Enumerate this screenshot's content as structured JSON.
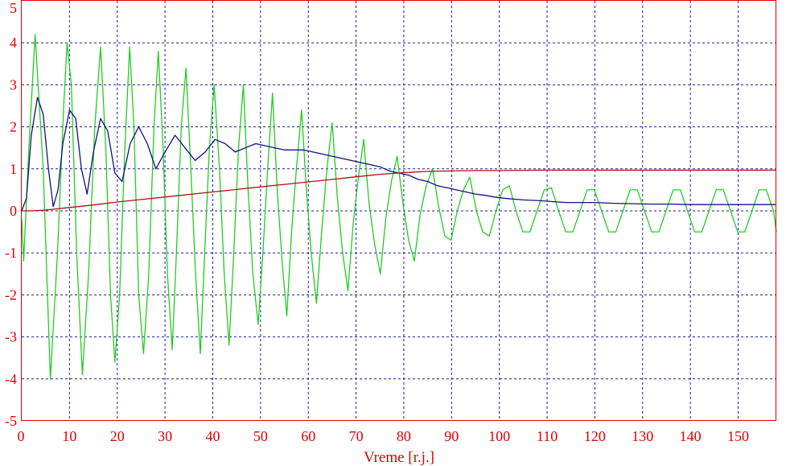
{
  "chart_data": {
    "type": "line",
    "title": "",
    "xlabel": "Vreme [r.j.]",
    "ylabel": "",
    "xlim": [
      0,
      158
    ],
    "ylim": [
      -5,
      5
    ],
    "grid": true,
    "legend": "none",
    "x_ticks": [
      0,
      10,
      20,
      30,
      40,
      50,
      60,
      70,
      80,
      90,
      100,
      110,
      120,
      130,
      140,
      150
    ],
    "x_tick_labels": [
      "0",
      "10",
      "20",
      "30",
      "40",
      "50",
      "60",
      "70",
      "80",
      "90",
      "100",
      "110",
      "120",
      "130",
      "140",
      "150"
    ],
    "y_ticks": [
      -5,
      -4,
      -3,
      -2,
      -1,
      0,
      1,
      2,
      3,
      4,
      5
    ],
    "y_tick_labels": [
      "-5",
      "-4",
      "-3",
      "-2",
      "-1",
      "0",
      "1",
      "2",
      "3",
      "4",
      "5"
    ],
    "colors": {
      "axis_text": "#e00000",
      "frame": "#e00000",
      "grid": "#1a1aa8",
      "background": "#ffffff"
    },
    "series": [
      {
        "color": "#22cc22",
        "x": [
          0,
          0.4,
          1.5,
          2.8,
          4.5,
          6.0,
          7.5,
          8.8,
          9.5,
          10.4,
          11.5,
          12.7,
          14.0,
          15.3,
          16.5,
          17.6,
          18.6,
          19.5,
          20.5,
          21.6,
          22.6,
          23.5,
          24.5,
          25.5,
          26.6,
          27.7,
          28.6,
          29.6,
          30.5,
          31.5,
          32.4,
          33.4,
          34.4,
          35.4,
          36.4,
          37.4,
          38.3,
          39.3,
          40.3,
          41.4,
          42.4,
          43.4,
          44.4,
          45.4,
          46.4,
          47.4,
          48.4,
          49.5,
          50.5,
          51.5,
          52.5,
          53.5,
          54.5,
          55.5,
          56.5,
          57.5,
          58.6,
          59.6,
          60.6,
          61.7,
          62.8,
          63.9,
          65.0,
          66.1,
          67.2,
          68.3,
          69.4,
          70.5,
          71.6,
          72.7,
          73.9,
          75.1,
          76.2,
          77.4,
          78.6,
          79.8,
          81.0,
          82.2,
          83.4,
          84.7,
          86.0,
          87.3,
          88.6,
          89.9,
          91.2,
          92.5,
          93.8,
          95.2,
          96.5,
          97.9,
          99.3,
          100.7,
          102.1,
          103.5,
          104.9,
          106.4,
          107.9,
          109.4,
          110.9,
          112.4,
          113.9,
          115.4,
          116.9,
          118.4,
          119.9,
          121.4,
          122.9,
          124.4,
          125.9,
          127.4,
          128.9,
          130.4,
          131.9,
          133.4,
          134.9,
          136.4,
          137.9,
          139.4,
          140.9,
          142.4,
          143.9,
          145.4,
          146.9,
          148.4,
          149.9,
          151.4,
          152.9,
          154.4,
          155.9,
          157.4,
          158
        ],
        "y": [
          -0.2,
          -1.2,
          1.5,
          4.2,
          1.0,
          -4.0,
          -1.0,
          2.5,
          4.0,
          3.0,
          -1.0,
          -3.9,
          -1.5,
          2.0,
          3.9,
          1.5,
          -2.0,
          -3.6,
          -2.0,
          1.5,
          3.9,
          2.0,
          -2.0,
          -3.4,
          -1.5,
          2.0,
          3.8,
          1.5,
          -1.5,
          -3.3,
          -1.0,
          2.0,
          3.4,
          1.0,
          -1.5,
          -3.4,
          -1.0,
          1.5,
          3.0,
          1.0,
          -1.5,
          -3.2,
          -1.0,
          1.5,
          3.0,
          0.5,
          -1.5,
          -2.7,
          -1.0,
          1.0,
          2.8,
          0.5,
          -1.2,
          -2.5,
          -0.5,
          1.0,
          2.4,
          0.5,
          -1.0,
          -2.2,
          -0.5,
          1.0,
          2.1,
          0.3,
          -1.0,
          -1.9,
          -0.3,
          0.8,
          1.7,
          0.2,
          -0.8,
          -1.5,
          -0.2,
          0.7,
          1.3,
          0.2,
          -0.7,
          -1.2,
          -0.1,
          0.6,
          1.0,
          0.1,
          -0.6,
          -0.7,
          0.0,
          0.5,
          0.8,
          0.0,
          -0.5,
          -0.6,
          0.0,
          0.5,
          0.6,
          0.0,
          -0.5,
          -0.5,
          0.0,
          0.5,
          0.55,
          0.0,
          -0.5,
          -0.5,
          0.0,
          0.5,
          0.5,
          0.0,
          -0.5,
          -0.5,
          0.0,
          0.5,
          0.5,
          0.0,
          -0.5,
          -0.5,
          0.0,
          0.5,
          0.5,
          0.0,
          -0.5,
          -0.5,
          0.0,
          0.5,
          0.5,
          0.0,
          -0.5,
          -0.5,
          0.0,
          0.5,
          0.5,
          0.0,
          -0.5
        ]
      },
      {
        "color": "#101080",
        "x": [
          0,
          1.0,
          2.0,
          3.3,
          4.5,
          5.6,
          6.6,
          7.6,
          8.6,
          10.0,
          11.3,
          12.5,
          13.7,
          15.0,
          16.5,
          18.0,
          19.5,
          21.0,
          22.7,
          24.5,
          26.3,
          28.1,
          30.0,
          32.1,
          34.2,
          36.3,
          38.4,
          40.5,
          42.6,
          44.7,
          46.8,
          49.0,
          51.0,
          53.0,
          55.0,
          57.0,
          59.0,
          61.0,
          63.0,
          65.0,
          67.0,
          69.0,
          71.0,
          73.0,
          75.0,
          77.0,
          79.0,
          81.0,
          83.0,
          85.0,
          87.0,
          89.0,
          91.0,
          93.0,
          95.0,
          97.0,
          99.0,
          101.0,
          103.0,
          105.0,
          107.0,
          109.0,
          111.0,
          114.0,
          117.0,
          120.0,
          124.0,
          128.0,
          132.0,
          136.0,
          140.0,
          145.0,
          150.0,
          155.0,
          158.0
        ],
        "y": [
          0,
          0.3,
          1.8,
          2.7,
          2.3,
          1.0,
          0.1,
          0.5,
          1.6,
          2.4,
          2.2,
          1.0,
          0.4,
          1.4,
          2.2,
          1.9,
          0.9,
          0.7,
          1.6,
          2.0,
          1.6,
          1.0,
          1.4,
          1.8,
          1.5,
          1.2,
          1.4,
          1.7,
          1.6,
          1.4,
          1.5,
          1.6,
          1.55,
          1.5,
          1.45,
          1.45,
          1.45,
          1.4,
          1.35,
          1.3,
          1.25,
          1.2,
          1.15,
          1.1,
          1.05,
          0.95,
          0.9,
          0.85,
          0.75,
          0.7,
          0.6,
          0.55,
          0.5,
          0.45,
          0.4,
          0.37,
          0.33,
          0.3,
          0.28,
          0.26,
          0.25,
          0.24,
          0.22,
          0.2,
          0.2,
          0.2,
          0.18,
          0.17,
          0.16,
          0.16,
          0.15,
          0.15,
          0.15,
          0.15,
          0.15
        ]
      },
      {
        "color": "#aa1010",
        "x": [
          0,
          2,
          5,
          10,
          15,
          20,
          25,
          30,
          35,
          40,
          45,
          50,
          55,
          60,
          65,
          70,
          75,
          80,
          85,
          90,
          95,
          100,
          110,
          120,
          130,
          140,
          150,
          158
        ],
        "y": [
          0,
          0.0,
          0.02,
          0.08,
          0.14,
          0.21,
          0.27,
          0.33,
          0.39,
          0.45,
          0.51,
          0.57,
          0.63,
          0.69,
          0.75,
          0.81,
          0.87,
          0.91,
          0.94,
          0.95,
          0.96,
          0.96,
          0.97,
          0.97,
          0.97,
          0.97,
          0.97,
          0.97
        ]
      }
    ]
  }
}
